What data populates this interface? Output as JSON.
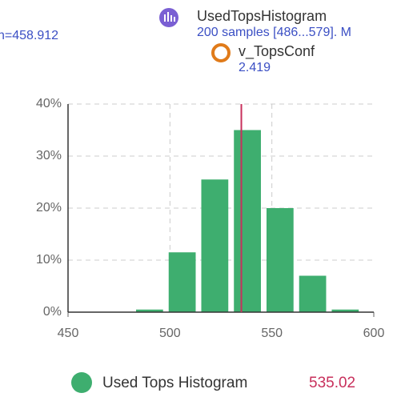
{
  "header": {
    "left_text": "n=458.912",
    "series_name": "UsedTopsHistogram",
    "series_info": "200 samples [486...579]. M",
    "conf_name": "v_TopsConf",
    "conf_value": "2.419"
  },
  "chart_data": {
    "type": "histogram",
    "bins": [
      482,
      498,
      514,
      530,
      546,
      562,
      578,
      594
    ],
    "values": [
      0.5,
      11.5,
      25.5,
      35,
      20,
      7,
      0.5
    ],
    "color": "#3eae6f",
    "xlim": [
      450,
      600
    ],
    "xticks": [
      450,
      500,
      550,
      600
    ],
    "ylim": [
      0,
      40
    ],
    "yticks": [
      {
        "value": 0,
        "label": "0%"
      },
      {
        "value": 10,
        "label": "10%"
      },
      {
        "value": 20,
        "label": "20%"
      },
      {
        "value": 30,
        "label": "30%"
      },
      {
        "value": 40,
        "label": "40%"
      }
    ],
    "grid": true,
    "series_name": "Used Tops Histogram",
    "marker_value": 535.02,
    "marker_color": "#c8305c"
  }
}
